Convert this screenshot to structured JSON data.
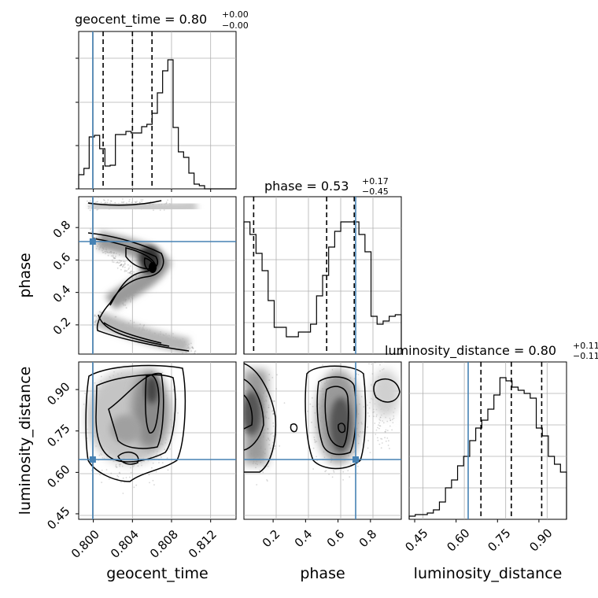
{
  "chart_data": {
    "type": "corner",
    "parameters": [
      "geocent_time",
      "phase",
      "luminosity_distance"
    ],
    "truths": {
      "geocent_time": 0.7996,
      "phase": 0.72,
      "luminosity_distance": 0.65
    },
    "axes": {
      "geocent_time": {
        "range": [
          0.7985,
          0.8146
        ],
        "ticks": [
          "0.800",
          "0.804",
          "0.808",
          "0.812"
        ],
        "tick_values": [
          0.8,
          0.804,
          0.808,
          0.812
        ]
      },
      "phase": {
        "range": [
          0.02,
          0.99
        ],
        "ticks": [
          "0.2",
          "0.4",
          "0.6",
          "0.8"
        ],
        "tick_values": [
          0.2,
          0.4,
          0.6,
          0.8
        ]
      },
      "luminosity_distance": {
        "range": [
          0.43,
          1.0
        ],
        "ticks": [
          "0.45",
          "0.60",
          "0.75",
          "0.90"
        ],
        "tick_values": [
          0.45,
          0.6,
          0.75,
          0.9
        ]
      }
    },
    "diagonal": [
      {
        "parameter": "geocent_time",
        "title": "geocent_time = 0.80",
        "title_sup": "+0.00",
        "title_sub": "−0.00",
        "quantiles": [
          0.801,
          0.804,
          0.806
        ],
        "histogram": [
          0.9,
          1.3,
          3.3,
          3.4,
          2.55,
          1.45,
          1.5,
          3.45,
          3.45,
          3.65,
          3.55,
          3.55,
          3.95,
          4.1,
          4.8,
          6.1,
          7.5,
          8.2,
          3.9,
          2.35,
          2.0,
          1.0,
          0.3,
          0.2,
          0.0,
          0.0,
          0.0,
          0.0,
          0.0,
          0.0
        ],
        "hist_scale_max": 10,
        "grid_y": [
          1,
          2,
          3
        ]
      },
      {
        "parameter": "phase",
        "title": "phase = 0.53",
        "title_sup": "+0.17",
        "title_sub": "−0.45",
        "quantiles": [
          0.08,
          0.53,
          0.7
        ],
        "histogram": [
          0.84,
          0.76,
          0.64,
          0.53,
          0.34,
          0.17,
          0.17,
          0.11,
          0.11,
          0.14,
          0.14,
          0.19,
          0.37,
          0.5,
          0.68,
          0.78,
          0.84,
          0.84,
          0.84,
          0.76,
          0.65,
          0.24,
          0.19,
          0.21,
          0.24,
          0.25
        ],
        "hist_scale_max": 1,
        "grid_y": [
          0.2,
          0.4,
          0.6,
          0.8
        ]
      },
      {
        "parameter": "luminosity_distance",
        "title": "luminosity_distance = 0.80",
        "title_sup": "+0.11",
        "title_sub": "−0.11",
        "quantiles": [
          0.69,
          0.8,
          0.91
        ],
        "histogram": [
          0.02,
          0.03,
          0.03,
          0.04,
          0.06,
          0.11,
          0.2,
          0.25,
          0.34,
          0.4,
          0.5,
          0.58,
          0.63,
          0.7,
          0.79,
          0.9,
          0.88,
          0.84,
          0.82,
          0.8,
          0.77,
          0.58,
          0.53,
          0.4,
          0.35,
          0.3
        ],
        "hist_scale_max": 1,
        "grid_y": [
          0.2,
          0.4,
          0.6,
          0.8
        ]
      }
    ],
    "pairs": [
      {
        "x": "geocent_time",
        "y": "phase"
      },
      {
        "x": "geocent_time",
        "y": "luminosity_distance"
      },
      {
        "x": "phase",
        "y": "luminosity_distance"
      }
    ],
    "grid": true,
    "truth_color": "#4682b4",
    "quantile_style": "dashed"
  }
}
